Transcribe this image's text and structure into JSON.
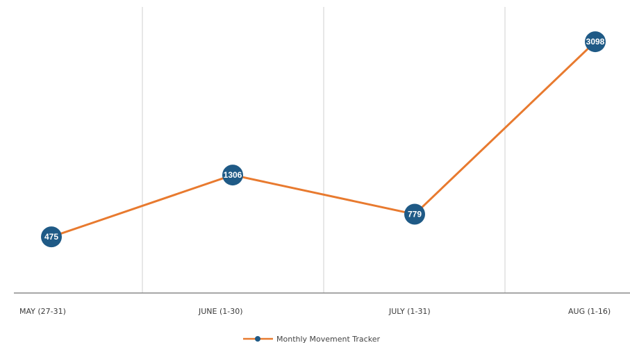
{
  "chart_data": {
    "type": "line",
    "categories": [
      "MAY (27-31)",
      "JUNE (1-30)",
      "JULY (1-31)",
      "AUG (1-16)"
    ],
    "series": [
      {
        "name": "Monthly Movement Tracker",
        "values": [
          475,
          1306,
          779,
          3098
        ]
      }
    ],
    "data_labels": [
      "475",
      "1306",
      "779",
      "3098"
    ],
    "ylim": [
      0,
      3500
    ],
    "grid": "vertical",
    "legend_position": "bottom-center",
    "colors": {
      "line": "#e87a2f",
      "marker": "#1f5a86",
      "marker_text": "#ffffff",
      "grid": "#cfcfcf",
      "axis": "#8a8a8a"
    }
  }
}
